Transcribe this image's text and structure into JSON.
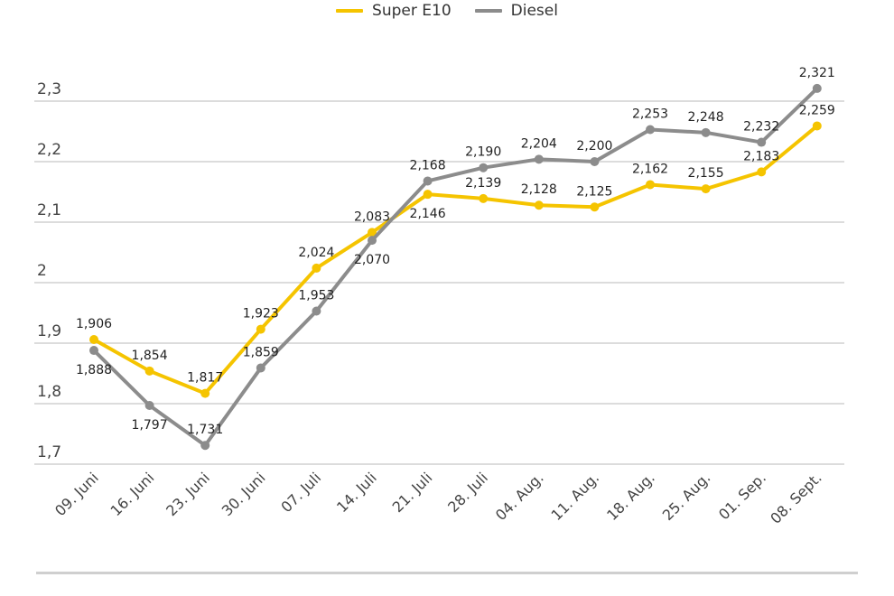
{
  "chart_data": {
    "type": "line",
    "categories": [
      "09. Juni",
      "16. Juni",
      "23. Juni",
      "30. Juni",
      "07. Juli",
      "14. Juli",
      "21. Juli",
      "28. Juli",
      "04. Aug.",
      "11. Aug.",
      "18. Aug.",
      "25. Aug.",
      "01. Sep.",
      "08. Sept."
    ],
    "series": [
      {
        "name": "Super E10",
        "color": "#f5c400",
        "values": [
          1.906,
          1.854,
          1.817,
          1.923,
          2.024,
          2.083,
          2.146,
          2.139,
          2.128,
          2.125,
          2.162,
          2.155,
          2.183,
          2.259
        ],
        "labels": [
          "1,906",
          "1,854",
          "1,817",
          "1,923",
          "2,024",
          "2,083",
          "2,146",
          "2,139",
          "2,128",
          "2,125",
          "2,162",
          "2,155",
          "2,183",
          "2,259"
        ]
      },
      {
        "name": "Diesel",
        "color": "#8c8c8c",
        "values": [
          1.888,
          1.797,
          1.731,
          1.859,
          1.953,
          2.07,
          2.168,
          2.19,
          2.204,
          2.2,
          2.253,
          2.248,
          2.232,
          2.321
        ],
        "labels": [
          "1,888",
          "1,797",
          "1,731",
          "1,859",
          "1,953",
          "2,070",
          "2,168",
          "2,190",
          "2,204",
          "2,200",
          "2,253",
          "2,248",
          "2,232",
          "2,321"
        ]
      }
    ],
    "yticks": [
      1.7,
      1.8,
      1.9,
      2.0,
      2.1,
      2.2,
      2.3
    ],
    "ytick_labels": [
      "1,7",
      "1,8",
      "1,9",
      "2",
      "2,1",
      "2,2",
      "2,3"
    ],
    "ylim": [
      1.7,
      2.3
    ],
    "grid": true,
    "legend_position": "top-center",
    "title": "",
    "xlabel": "",
    "ylabel": ""
  }
}
